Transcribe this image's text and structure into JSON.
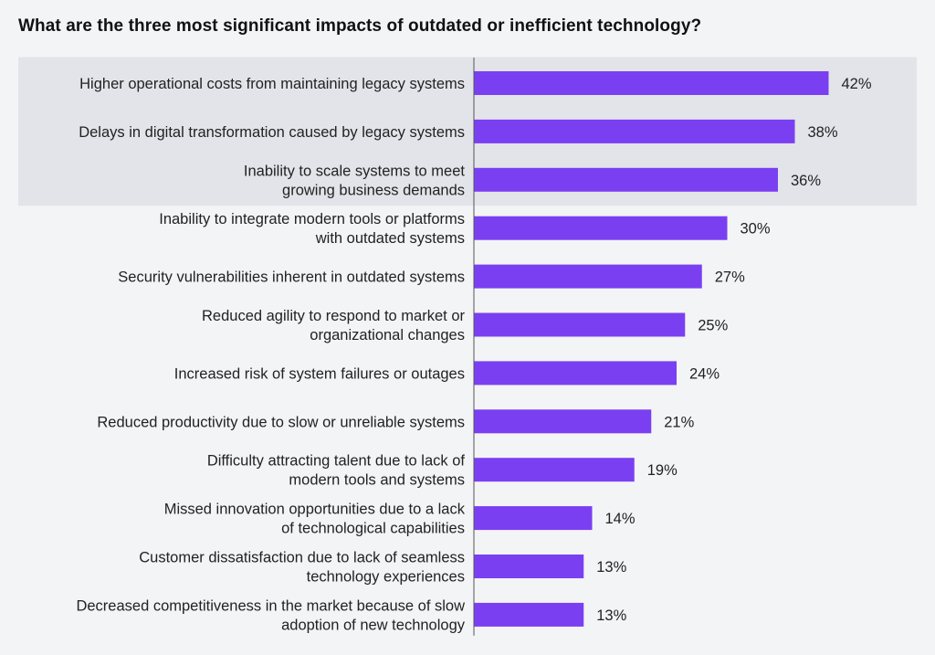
{
  "colors": {
    "bar": "#7b3ff2",
    "highlight_band": "#e2e4e9",
    "background": "#f3f4f6",
    "axis": "#555555"
  },
  "chart_data": {
    "type": "bar",
    "orientation": "horizontal",
    "title": "What are the three most significant impacts of outdated or inefficient technology?",
    "xlabel": "",
    "ylabel": "",
    "xlim": [
      0,
      100
    ],
    "unit": "%",
    "grid": false,
    "highlighted_top_n": 3,
    "categories": [
      [
        "Higher operational costs from maintaining legacy systems"
      ],
      [
        "Delays in digital transformation caused by legacy systems"
      ],
      [
        "Inability to scale systems to meet",
        "growing business demands"
      ],
      [
        "Inability to integrate modern tools or platforms",
        "with outdated systems"
      ],
      [
        "Security vulnerabilities inherent in outdated systems"
      ],
      [
        "Reduced agility to respond to market or",
        "organizational changes"
      ],
      [
        "Increased risk of system failures or outages"
      ],
      [
        "Reduced productivity due to slow or unreliable systems"
      ],
      [
        "Difficulty attracting talent due to lack of",
        "modern tools and systems"
      ],
      [
        "Missed innovation opportunities due to a lack",
        "of technological capabilities"
      ],
      [
        "Customer dissatisfaction due to lack of seamless",
        "technology experiences"
      ],
      [
        "Decreased competitiveness in the market because of slow",
        "adoption of new technology"
      ]
    ],
    "values": [
      42,
      38,
      36,
      30,
      27,
      25,
      24,
      21,
      19,
      14,
      13,
      13
    ],
    "value_labels": [
      "42%",
      "38%",
      "36%",
      "30%",
      "27%",
      "25%",
      "24%",
      "21%",
      "19%",
      "14%",
      "13%",
      "13%"
    ]
  }
}
